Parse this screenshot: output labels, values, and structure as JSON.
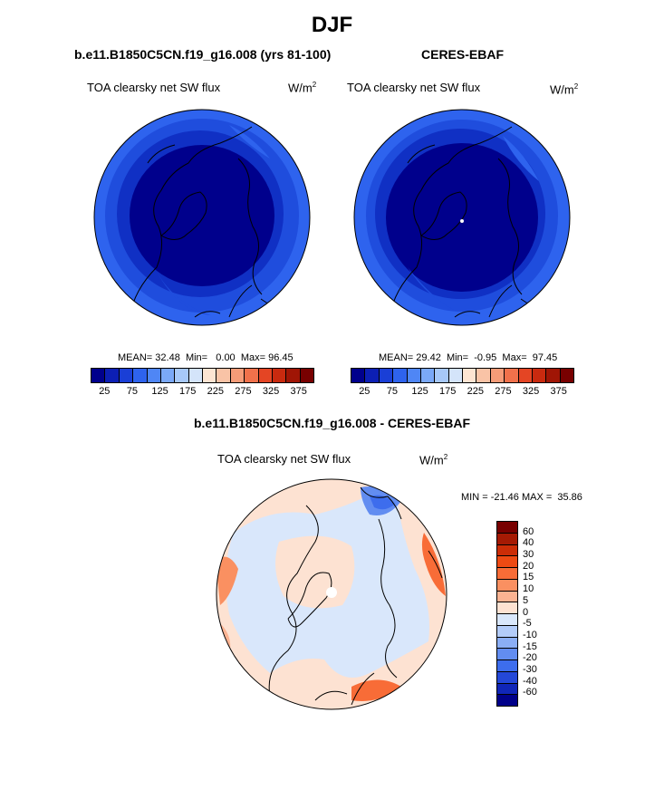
{
  "title": "DJF",
  "panels": [
    {
      "id": "model",
      "title": "b.e11.B1850C5CN.f19_g16.008 (yrs 81-100)",
      "variable": "TOA clearsky net SW flux",
      "units_base": "W/m",
      "units_exp": "2",
      "stats": {
        "mean_label": "MEAN=",
        "mean": "32.48",
        "min_label": "Min=",
        "min": "0.00",
        "max_label": "Max=",
        "max": "96.45"
      }
    },
    {
      "id": "obs",
      "title": "CERES-EBAF",
      "variable": "TOA clearsky net SW flux",
      "units_base": "W/m",
      "units_exp": "2",
      "stats": {
        "mean_label": "MEAN=",
        "mean": "29.42",
        "min_label": "Min=",
        "min": "-0.95",
        "max_label": "Max=",
        "max": "97.45"
      }
    },
    {
      "id": "diff",
      "title": "b.e11.B1850C5CN.f19_g16.008 - CERES-EBAF",
      "variable": "TOA clearsky net SW flux",
      "units_base": "W/m",
      "units_exp": "2",
      "stats_text": "MIN = -21.46 MAX =  35.86"
    }
  ],
  "colorbar_abs": {
    "colors": [
      "#00008c",
      "#0c1fb4",
      "#1a3fd6",
      "#2e63ee",
      "#4f86f5",
      "#7aa8f7",
      "#a7c8f8",
      "#d4e4fa",
      "#fde4d2",
      "#f9c3a6",
      "#f59c78",
      "#f0714b",
      "#e44524",
      "#c92a0f",
      "#a01505",
      "#780000"
    ],
    "tick_labels": [
      "25",
      "75",
      "125",
      "175",
      "225",
      "275",
      "325",
      "375"
    ]
  },
  "colorbar_diff": {
    "colors": [
      "#780000",
      "#a51a04",
      "#cc2d07",
      "#ee4a13",
      "#f86c37",
      "#fa9061",
      "#fbb392",
      "#fde2d2",
      "#d9e7fb",
      "#b3ccf9",
      "#8baef5",
      "#628df1",
      "#3d6ded",
      "#2448d8",
      "#1026b8",
      "#000089"
    ],
    "tick_labels": [
      "60",
      "40",
      "30",
      "20",
      "15",
      "10",
      "5",
      "0",
      "-5",
      "-10",
      "-15",
      "-20",
      "-30",
      "-40",
      "-60"
    ]
  }
}
